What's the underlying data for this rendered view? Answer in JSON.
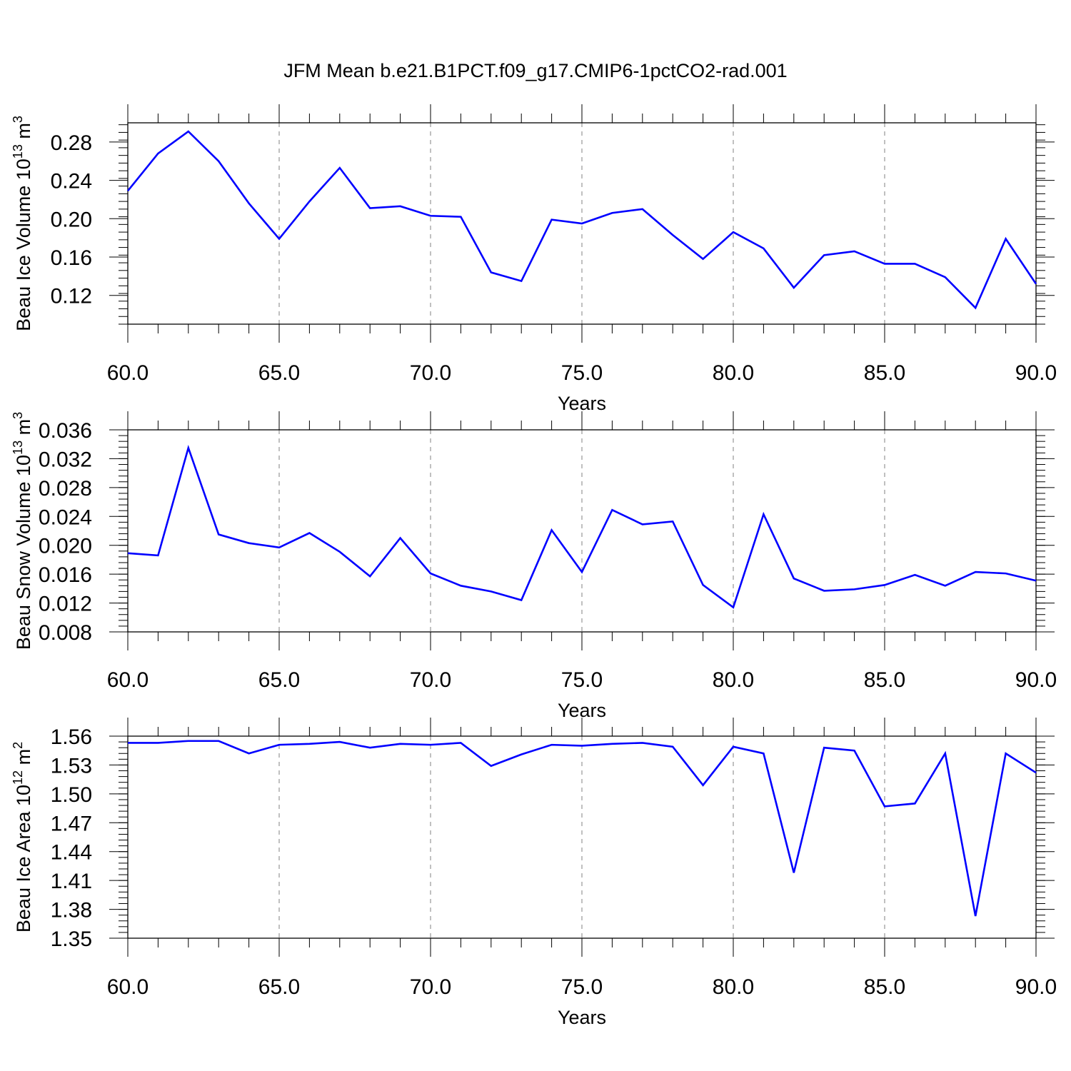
{
  "title": "JFM Mean b.e21.B1PCT.f09_g17.CMIP6-1pctCO2-rad.001",
  "colors": {
    "line": "#0000ff",
    "axis": "#000000",
    "grid": "#808080"
  },
  "chart_data": [
    {
      "type": "line",
      "xlabel": "Years",
      "ylabel": {
        "text": "Beau Ice Volume 10",
        "sup1": "13",
        "mid": " m",
        "sup2": "3"
      },
      "xlim": [
        60,
        90
      ],
      "ylim": [
        0.09,
        0.3
      ],
      "xticks": [
        60,
        65,
        70,
        75,
        80,
        85,
        90
      ],
      "xtick_labels": [
        "60.0",
        "65.0",
        "70.0",
        "75.0",
        "80.0",
        "85.0",
        "90.0"
      ],
      "yticks": [
        0.12,
        0.16,
        0.2,
        0.24,
        0.28
      ],
      "ytick_labels": [
        "0.12",
        "0.16",
        "0.20",
        "0.24",
        "0.28"
      ],
      "grid": "vertical dashed at major x ticks",
      "series": [
        {
          "x": [
            60,
            61,
            62,
            63,
            64,
            65,
            66,
            67,
            68,
            69,
            70,
            71,
            72,
            73,
            74,
            75,
            76,
            77,
            78,
            79,
            80,
            81,
            82,
            83,
            84,
            85,
            86,
            87,
            88,
            89,
            90
          ],
          "values": [
            0.229,
            0.268,
            0.291,
            0.26,
            0.216,
            0.179,
            0.218,
            0.253,
            0.211,
            0.213,
            0.203,
            0.202,
            0.144,
            0.135,
            0.199,
            0.195,
            0.206,
            0.21,
            0.183,
            0.158,
            0.186,
            0.169,
            0.128,
            0.162,
            0.166,
            0.153,
            0.153,
            0.139,
            0.107,
            0.179,
            0.132
          ]
        }
      ]
    },
    {
      "type": "line",
      "xlabel": "Years",
      "ylabel": {
        "text": "Beau Snow Volume 10",
        "sup1": "13",
        "mid": " m",
        "sup2": "3"
      },
      "xlim": [
        60,
        90
      ],
      "ylim": [
        0.008,
        0.036
      ],
      "xticks": [
        60,
        65,
        70,
        75,
        80,
        85,
        90
      ],
      "xtick_labels": [
        "60.0",
        "65.0",
        "70.0",
        "75.0",
        "80.0",
        "85.0",
        "90.0"
      ],
      "yticks": [
        0.008,
        0.012,
        0.016,
        0.02,
        0.024,
        0.028,
        0.032,
        0.036
      ],
      "ytick_labels": [
        "0.008",
        "0.012",
        "0.016",
        "0.020",
        "0.024",
        "0.028",
        "0.032",
        "0.036"
      ],
      "grid": "vertical dashed at major x ticks",
      "series": [
        {
          "x": [
            60,
            61,
            62,
            63,
            64,
            65,
            66,
            67,
            68,
            69,
            70,
            71,
            72,
            73,
            74,
            75,
            76,
            77,
            78,
            79,
            80,
            81,
            82,
            83,
            84,
            85,
            86,
            87,
            88,
            89,
            90
          ],
          "values": [
            0.0189,
            0.0186,
            0.0335,
            0.0215,
            0.0203,
            0.0197,
            0.0217,
            0.0191,
            0.0157,
            0.021,
            0.0161,
            0.0144,
            0.0136,
            0.0124,
            0.0221,
            0.0163,
            0.0249,
            0.0229,
            0.0233,
            0.0145,
            0.0114,
            0.0243,
            0.0154,
            0.0137,
            0.0139,
            0.0145,
            0.0159,
            0.0144,
            0.0163,
            0.0161,
            0.0151
          ]
        }
      ]
    },
    {
      "type": "line",
      "xlabel": "Years",
      "ylabel": {
        "text": "Beau Ice Area 10",
        "sup1": "12",
        "mid": " m",
        "sup2": "2"
      },
      "xlim": [
        60,
        90
      ],
      "ylim": [
        1.35,
        1.56
      ],
      "xticks": [
        60,
        65,
        70,
        75,
        80,
        85,
        90
      ],
      "xtick_labels": [
        "60.0",
        "65.0",
        "70.0",
        "75.0",
        "80.0",
        "85.0",
        "90.0"
      ],
      "yticks": [
        1.35,
        1.38,
        1.41,
        1.44,
        1.47,
        1.5,
        1.53,
        1.56
      ],
      "ytick_labels": [
        "1.35",
        "1.38",
        "1.41",
        "1.44",
        "1.47",
        "1.50",
        "1.53",
        "1.56"
      ],
      "grid": "vertical dashed at major x ticks",
      "series": [
        {
          "x": [
            60,
            61,
            62,
            63,
            64,
            65,
            66,
            67,
            68,
            69,
            70,
            71,
            72,
            73,
            74,
            75,
            76,
            77,
            78,
            79,
            80,
            81,
            82,
            83,
            84,
            85,
            86,
            87,
            88,
            89,
            90
          ],
          "values": [
            1.553,
            1.553,
            1.555,
            1.555,
            1.542,
            1.551,
            1.552,
            1.554,
            1.548,
            1.552,
            1.551,
            1.553,
            1.529,
            1.541,
            1.551,
            1.55,
            1.552,
            1.553,
            1.549,
            1.509,
            1.549,
            1.542,
            1.418,
            1.548,
            1.545,
            1.487,
            1.49,
            1.542,
            1.373,
            1.542,
            1.522
          ]
        }
      ]
    }
  ]
}
